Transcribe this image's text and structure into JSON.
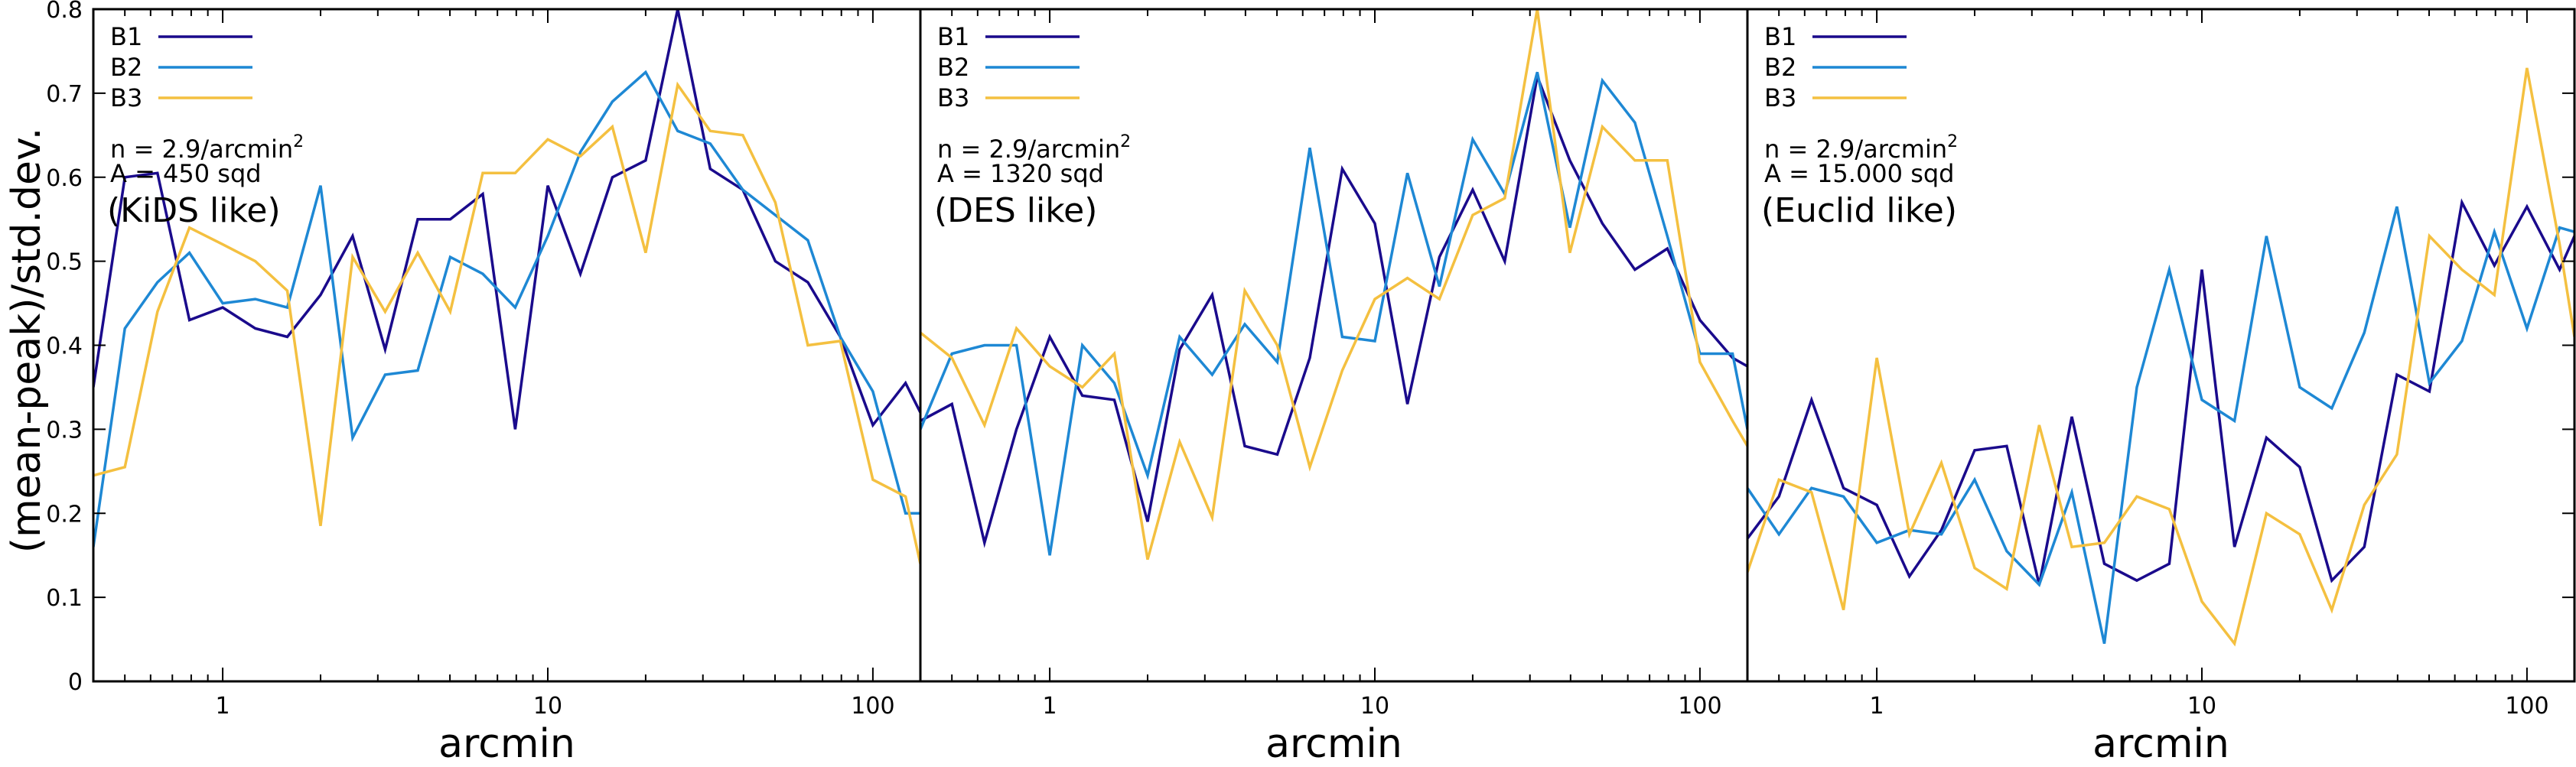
{
  "chart_data": {
    "type": "line",
    "ylabel": "(mean-peak)/std.dev.",
    "ylim": [
      0,
      0.8
    ],
    "yticks": [
      "0",
      "0.1",
      "0.2",
      "0.3",
      "0.4",
      "0.5",
      "0.6",
      "0.7",
      "0.8"
    ],
    "xlabel": "arcmin",
    "xscale": "log",
    "xlim": [
      0.4,
      140
    ],
    "xticks": [
      "1",
      "10",
      "100"
    ],
    "legend_position": "top-left",
    "colors": {
      "B1": "#1a0a8c",
      "B2": "#1e88d4",
      "B3": "#f4c040"
    },
    "x": [
      0.4,
      0.5,
      0.63,
      0.79,
      1.0,
      1.26,
      1.58,
      2.0,
      2.51,
      3.16,
      3.98,
      5.01,
      6.31,
      7.94,
      10.0,
      12.6,
      15.8,
      20.0,
      25.1,
      31.6,
      39.8,
      50.1,
      63.1,
      79.4,
      100,
      126,
      140
    ],
    "panels": [
      {
        "annotation": {
          "density_prefix": "n = 2.9/arcmin",
          "density_sup": "2",
          "area": "A = 450 sqd",
          "label": "(KiDS like)"
        },
        "series": [
          {
            "name": "B1",
            "values": [
              0.35,
              0.6,
              0.605,
              0.43,
              0.445,
              0.42,
              0.41,
              0.46,
              0.53,
              0.395,
              0.55,
              0.55,
              0.58,
              0.3,
              0.59,
              0.485,
              0.6,
              0.62,
              0.8,
              0.61,
              0.585,
              0.5,
              0.475,
              0.41,
              0.305,
              0.355,
              0.32
            ]
          },
          {
            "name": "B2",
            "values": [
              0.16,
              0.42,
              0.475,
              0.51,
              0.45,
              0.455,
              0.445,
              0.59,
              0.29,
              0.365,
              0.37,
              0.505,
              0.485,
              0.445,
              0.53,
              0.63,
              0.69,
              0.725,
              0.655,
              0.64,
              0.585,
              0.555,
              0.525,
              0.41,
              0.345,
              0.2,
              0.2
            ]
          },
          {
            "name": "B3",
            "values": [
              0.245,
              0.255,
              0.44,
              0.54,
              0.52,
              0.5,
              0.465,
              0.185,
              0.505,
              0.44,
              0.51,
              0.44,
              0.605,
              0.605,
              0.645,
              0.625,
              0.66,
              0.51,
              0.71,
              0.655,
              0.65,
              0.57,
              0.4,
              0.405,
              0.24,
              0.22,
              0.14
            ]
          }
        ]
      },
      {
        "annotation": {
          "density_prefix": "n = 2.9/arcmin",
          "density_sup": "2",
          "area": "A = 1320 sqd",
          "label": "(DES like)"
        },
        "series": [
          {
            "name": "B1",
            "values": [
              0.31,
              0.33,
              0.165,
              0.3,
              0.41,
              0.34,
              0.335,
              0.19,
              0.395,
              0.46,
              0.28,
              0.27,
              0.385,
              0.61,
              0.545,
              0.33,
              0.505,
              0.585,
              0.5,
              0.72,
              0.62,
              0.545,
              0.49,
              0.515,
              0.43,
              0.385,
              0.375
            ]
          },
          {
            "name": "B2",
            "values": [
              0.3,
              0.39,
              0.4,
              0.4,
              0.15,
              0.4,
              0.355,
              0.245,
              0.41,
              0.365,
              0.425,
              0.38,
              0.635,
              0.41,
              0.405,
              0.605,
              0.47,
              0.645,
              0.58,
              0.725,
              0.54,
              0.715,
              0.665,
              0.53,
              0.39,
              0.39,
              0.3
            ]
          },
          {
            "name": "B3",
            "values": [
              0.415,
              0.385,
              0.305,
              0.42,
              0.375,
              0.35,
              0.39,
              0.145,
              0.285,
              0.195,
              0.465,
              0.4,
              0.255,
              0.37,
              0.455,
              0.48,
              0.455,
              0.555,
              0.575,
              0.8,
              0.51,
              0.66,
              0.62,
              0.62,
              0.38,
              0.31,
              0.28
            ]
          }
        ]
      },
      {
        "annotation": {
          "density_prefix": "n = 2.9/arcmin",
          "density_sup": "2",
          "area": "A = 15.000 sqd",
          "label": "(Euclid like)"
        },
        "series": [
          {
            "name": "B1",
            "values": [
              0.17,
              0.22,
              0.335,
              0.23,
              0.21,
              0.125,
              0.18,
              0.275,
              0.28,
              0.115,
              0.315,
              0.14,
              0.12,
              0.14,
              0.49,
              0.16,
              0.29,
              0.255,
              0.12,
              0.16,
              0.365,
              0.345,
              0.57,
              0.495,
              0.565,
              0.49,
              0.53
            ]
          },
          {
            "name": "B2",
            "values": [
              0.23,
              0.175,
              0.23,
              0.22,
              0.165,
              0.18,
              0.175,
              0.24,
              0.155,
              0.115,
              0.225,
              0.045,
              0.35,
              0.49,
              0.335,
              0.31,
              0.53,
              0.35,
              0.325,
              0.415,
              0.565,
              0.355,
              0.405,
              0.535,
              0.42,
              0.54,
              0.535
            ]
          },
          {
            "name": "B3",
            "values": [
              0.13,
              0.24,
              0.225,
              0.085,
              0.385,
              0.175,
              0.26,
              0.135,
              0.11,
              0.305,
              0.16,
              0.165,
              0.22,
              0.205,
              0.095,
              0.045,
              0.2,
              0.175,
              0.085,
              0.21,
              0.27,
              0.53,
              0.49,
              0.46,
              0.73,
              0.52,
              0.41
            ]
          }
        ]
      }
    ]
  }
}
